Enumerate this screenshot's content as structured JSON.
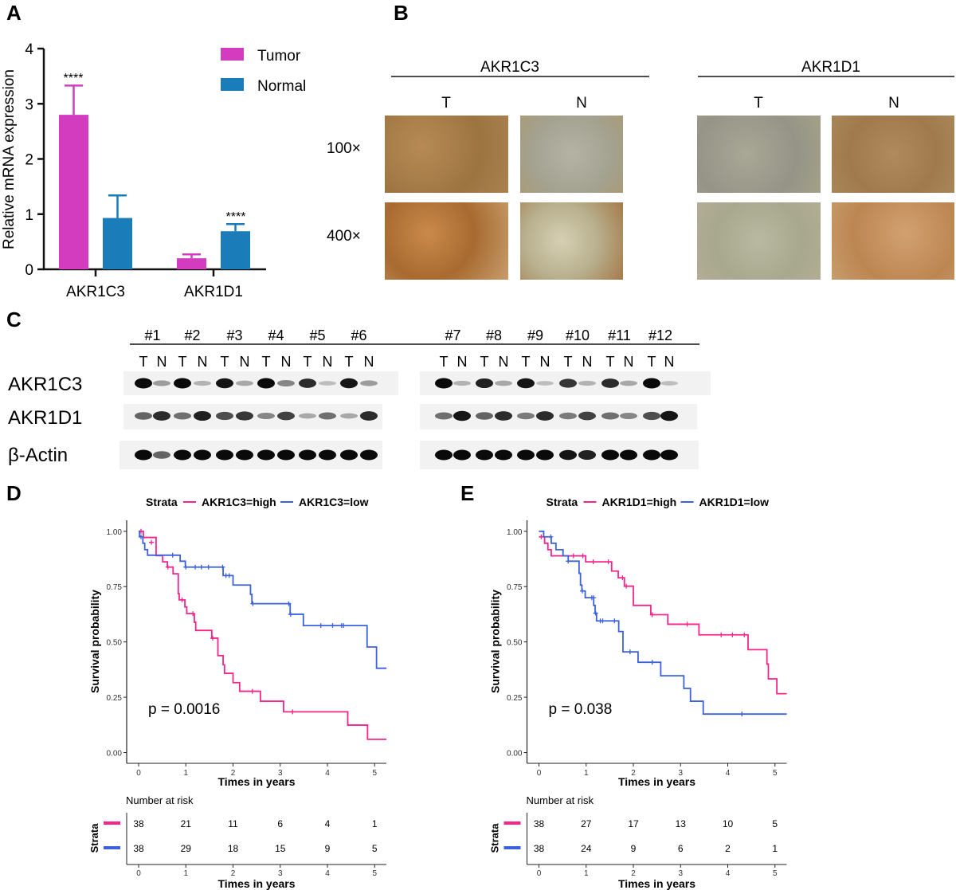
{
  "panel_labels": {
    "a": "A",
    "b": "B",
    "c": "C",
    "d": "D",
    "e": "E"
  },
  "colors": {
    "tumor": "#d43cbf",
    "normal": "#1a7cb8",
    "km_high": "#f7248a",
    "km_low": "#3b62dc"
  },
  "chart_data": [
    {
      "type": "bar",
      "panel": "A",
      "ylabel": "Relative mRNA expression",
      "ylim": [
        0,
        4
      ],
      "yticks": [
        "0",
        "1",
        "2",
        "3",
        "4"
      ],
      "categories": [
        "AKR1C3",
        "AKR1D1"
      ],
      "series": [
        {
          "name": "Tumor",
          "values": [
            2.8,
            0.2
          ],
          "errors": [
            0.53,
            0.07
          ]
        },
        {
          "name": "Normal",
          "values": [
            0.93,
            0.69
          ],
          "errors": [
            0.41,
            0.13
          ]
        }
      ],
      "annotations": [
        "****",
        "****"
      ],
      "legend": "top-right"
    },
    {
      "type": "line",
      "panel": "D",
      "title": "",
      "legend_title": "Strata",
      "xlabel": "Times in years",
      "ylabel": "Survival probability",
      "xlim": [
        0,
        5.25
      ],
      "ylim": [
        0,
        1
      ],
      "xticks": [
        "0",
        "1",
        "2",
        "3",
        "4",
        "5"
      ],
      "yticks": [
        "0.00",
        "0.25",
        "0.50",
        "0.75",
        "1.00"
      ],
      "pvalue": "p = 0.0016",
      "series": [
        {
          "name": "AKR1C3=high",
          "steps": [
            [
              0,
              1.0
            ],
            [
              0.1,
              0.972
            ],
            [
              0.37,
              0.89
            ],
            [
              0.51,
              0.862
            ],
            [
              0.61,
              0.838
            ],
            [
              0.73,
              0.808
            ],
            [
              0.84,
              0.718
            ],
            [
              0.86,
              0.69
            ],
            [
              0.98,
              0.658
            ],
            [
              1.02,
              0.628
            ],
            [
              1.18,
              0.589
            ],
            [
              1.21,
              0.552
            ],
            [
              1.55,
              0.517
            ],
            [
              1.68,
              0.438
            ],
            [
              1.79,
              0.397
            ],
            [
              1.82,
              0.358
            ],
            [
              2.0,
              0.316
            ],
            [
              2.14,
              0.277
            ],
            [
              2.58,
              0.232
            ],
            [
              3.07,
              0.184
            ],
            [
              4.43,
              0.124
            ],
            [
              4.85,
              0.06
            ],
            [
              5.25,
              0.06
            ]
          ],
          "censored": [
            [
              0.05,
              1.0
            ],
            [
              0.27,
              0.95
            ],
            [
              0.62,
              0.838
            ],
            [
              0.92,
              0.69
            ],
            [
              1.15,
              0.628
            ],
            [
              1.57,
              0.517
            ],
            [
              2.41,
              0.277
            ],
            [
              3.26,
              0.184
            ]
          ]
        },
        {
          "name": "AKR1C3=low",
          "steps": [
            [
              0,
              1.0
            ],
            [
              0.02,
              0.975
            ],
            [
              0.09,
              0.946
            ],
            [
              0.13,
              0.917
            ],
            [
              0.19,
              0.892
            ],
            [
              0.88,
              0.865
            ],
            [
              0.99,
              0.838
            ],
            [
              1.79,
              0.8
            ],
            [
              2.0,
              0.757
            ],
            [
              2.37,
              0.715
            ],
            [
              2.4,
              0.673
            ],
            [
              3.21,
              0.625
            ],
            [
              3.49,
              0.574
            ],
            [
              4.84,
              0.477
            ],
            [
              5.04,
              0.381
            ],
            [
              5.25,
              0.381
            ]
          ],
          "censored": [
            [
              0.05,
              0.975
            ],
            [
              0.72,
              0.892
            ],
            [
              1.0,
              0.838
            ],
            [
              1.2,
              0.838
            ],
            [
              1.33,
              0.838
            ],
            [
              1.48,
              0.838
            ],
            [
              1.78,
              0.838
            ],
            [
              1.85,
              0.8
            ],
            [
              1.92,
              0.8
            ],
            [
              2.42,
              0.673
            ],
            [
              3.18,
              0.673
            ],
            [
              3.22,
              0.625
            ],
            [
              3.86,
              0.574
            ],
            [
              4.11,
              0.574
            ],
            [
              4.3,
              0.574
            ],
            [
              4.34,
              0.574
            ]
          ]
        }
      ],
      "risk_table": {
        "title": "Number at risk",
        "ylabel": "Strata",
        "xlabel": "Times in years",
        "rows": [
          {
            "name": "AKR1C3=high",
            "values": [
              "38",
              "21",
              "11",
              "6",
              "4",
              "1"
            ]
          },
          {
            "name": "AKR1C3=low",
            "values": [
              "38",
              "29",
              "18",
              "15",
              "9",
              "5"
            ]
          }
        ]
      }
    },
    {
      "type": "line",
      "panel": "E",
      "title": "",
      "legend_title": "Strata",
      "xlabel": "Times in years",
      "ylabel": "Survival probability",
      "xlim": [
        0,
        5.25
      ],
      "ylim": [
        0,
        1
      ],
      "xticks": [
        "0",
        "1",
        "2",
        "3",
        "4",
        "5"
      ],
      "yticks": [
        "0.00",
        "0.25",
        "0.50",
        "0.75",
        "1.00"
      ],
      "pvalue": "p = 0.038",
      "series": [
        {
          "name": "AKR1D1=high",
          "steps": [
            [
              0,
              0.975
            ],
            [
              0.12,
              0.946
            ],
            [
              0.19,
              0.917
            ],
            [
              0.26,
              0.889
            ],
            [
              0.99,
              0.862
            ],
            [
              1.54,
              0.82
            ],
            [
              1.68,
              0.79
            ],
            [
              1.81,
              0.752
            ],
            [
              2.0,
              0.665
            ],
            [
              2.37,
              0.623
            ],
            [
              2.73,
              0.58
            ],
            [
              3.39,
              0.532
            ],
            [
              4.43,
              0.465
            ],
            [
              4.83,
              0.4
            ],
            [
              4.86,
              0.333
            ],
            [
              5.04,
              0.266
            ],
            [
              5.25,
              0.266
            ]
          ],
          "censored": [
            [
              0.05,
              0.975
            ],
            [
              0.73,
              0.889
            ],
            [
              0.93,
              0.889
            ],
            [
              1.15,
              0.862
            ],
            [
              1.47,
              0.862
            ],
            [
              1.77,
              0.79
            ],
            [
              1.85,
              0.752
            ],
            [
              2.4,
              0.623
            ],
            [
              3.14,
              0.58
            ],
            [
              3.86,
              0.532
            ],
            [
              4.1,
              0.532
            ],
            [
              4.35,
              0.532
            ]
          ]
        },
        {
          "name": "AKR1D1=low",
          "steps": [
            [
              0,
              1.0
            ],
            [
              0.1,
              0.975
            ],
            [
              0.26,
              0.946
            ],
            [
              0.36,
              0.917
            ],
            [
              0.51,
              0.889
            ],
            [
              0.62,
              0.865
            ],
            [
              0.85,
              0.81
            ],
            [
              0.88,
              0.757
            ],
            [
              0.91,
              0.73
            ],
            [
              0.98,
              0.7
            ],
            [
              1.16,
              0.665
            ],
            [
              1.19,
              0.63
            ],
            [
              1.22,
              0.595
            ],
            [
              1.69,
              0.547
            ],
            [
              1.78,
              0.455
            ],
            [
              2.1,
              0.408
            ],
            [
              2.58,
              0.347
            ],
            [
              3.07,
              0.29
            ],
            [
              3.21,
              0.232
            ],
            [
              3.48,
              0.174
            ],
            [
              5.25,
              0.174
            ]
          ],
          "censored": [
            [
              0.25,
              0.975
            ],
            [
              0.62,
              0.865
            ],
            [
              0.92,
              0.73
            ],
            [
              1.12,
              0.7
            ],
            [
              1.16,
              0.7
            ],
            [
              1.2,
              0.63
            ],
            [
              1.3,
              0.595
            ],
            [
              1.35,
              0.595
            ],
            [
              1.6,
              0.595
            ],
            [
              1.93,
              0.455
            ],
            [
              2.4,
              0.408
            ],
            [
              4.3,
              0.174
            ]
          ]
        }
      ],
      "risk_table": {
        "title": "Number at risk",
        "ylabel": "Strata",
        "xlabel": "Times in years",
        "rows": [
          {
            "name": "AKR1D1=high",
            "values": [
              "38",
              "27",
              "17",
              "13",
              "10",
              "5"
            ]
          },
          {
            "name": "AKR1D1=low",
            "values": [
              "38",
              "24",
              "9",
              "6",
              "2",
              "1"
            ]
          }
        ]
      }
    }
  ],
  "ihc": {
    "genes": [
      "AKR1C3",
      "AKR1D1"
    ],
    "columns": [
      "T",
      "N",
      "T",
      "N"
    ],
    "magnifications": [
      "100×",
      "400×"
    ]
  },
  "western": {
    "samples": [
      "#1",
      "#2",
      "#3",
      "#4",
      "#5",
      "#6",
      "#7",
      "#8",
      "#9",
      "#10",
      "#11",
      "#12"
    ],
    "lane_labels": [
      "T",
      "N"
    ],
    "rows": [
      {
        "label": "AKR1C3",
        "intensities": [
          1,
          0.35,
          1,
          0.25,
          0.95,
          0.3,
          1,
          0.45,
          0.85,
          0.2,
          0.95,
          0.35,
          1,
          0.25,
          0.9,
          0.3,
          0.95,
          0.2,
          0.8,
          0.25,
          0.85,
          0.3,
          1,
          0.2
        ]
      },
      {
        "label": "AKR1D1",
        "intensities": [
          0.6,
          0.85,
          0.55,
          0.9,
          0.7,
          0.8,
          0.45,
          0.75,
          0.3,
          0.55,
          0.3,
          0.85,
          0.55,
          0.95,
          0.6,
          0.85,
          0.5,
          0.85,
          0.5,
          0.75,
          0.55,
          0.45,
          0.7,
          0.95
        ]
      },
      {
        "label": "β-Actin",
        "intensities": [
          1,
          0.6,
          1,
          1,
          1,
          1,
          1,
          1,
          1,
          1,
          1,
          1,
          1,
          1,
          1,
          1,
          1,
          1,
          0.95,
          0.9,
          1,
          1,
          1,
          1
        ]
      }
    ]
  }
}
